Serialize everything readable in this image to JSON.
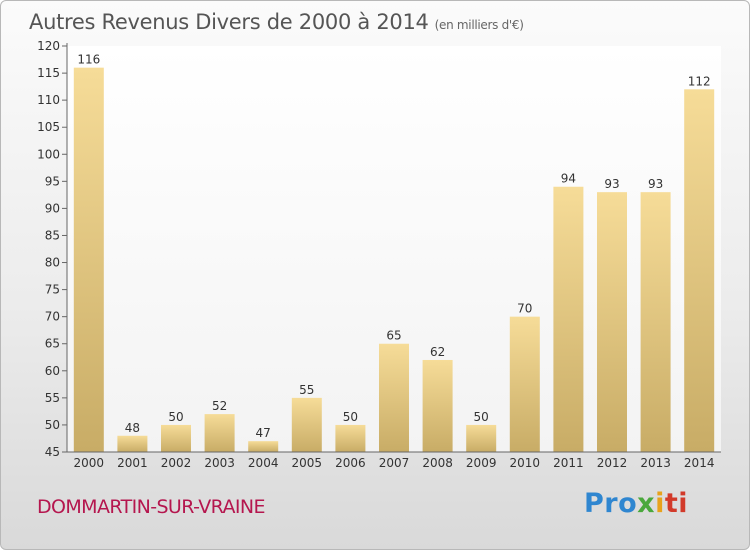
{
  "header": {
    "title": "Autres Revenus Divers de 2000 à 2014",
    "unit": "(en milliers d'€)"
  },
  "footer": {
    "city": "DOMMARTIN-SUR-VRAINE",
    "logo": [
      "Pro",
      "x",
      "i",
      "ti"
    ]
  },
  "colors": {
    "bar_top": "#f6dc98",
    "bar_bottom": "#c8ac66",
    "city": "#b5164e"
  },
  "chart_data": {
    "type": "bar",
    "title": "Autres Revenus Divers de 2000 à 2014",
    "subtitle": "(en milliers d'€)",
    "categories": [
      "2000",
      "2001",
      "2002",
      "2003",
      "2004",
      "2005",
      "2006",
      "2007",
      "2008",
      "2009",
      "2010",
      "2011",
      "2012",
      "2013",
      "2014"
    ],
    "values": [
      116,
      48,
      50,
      52,
      47,
      55,
      50,
      65,
      62,
      50,
      70,
      94,
      93,
      93,
      112
    ],
    "yticks": [
      45,
      50,
      55,
      60,
      65,
      70,
      75,
      80,
      85,
      90,
      95,
      100,
      105,
      110,
      115,
      120
    ],
    "ylim": [
      45,
      120
    ],
    "grid": false,
    "legend": "none"
  }
}
